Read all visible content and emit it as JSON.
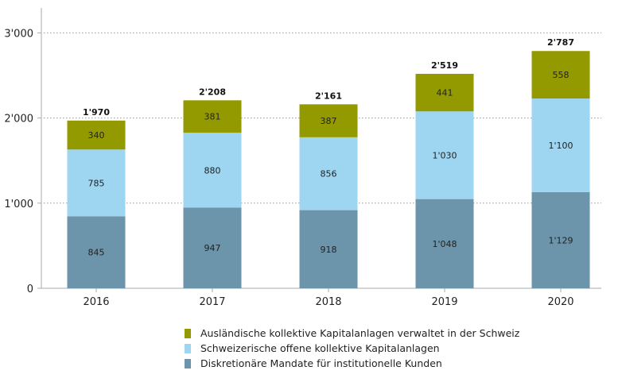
{
  "chart_data": {
    "type": "bar",
    "stacked": true,
    "categories": [
      "2016",
      "2017",
      "2018",
      "2019",
      "2020"
    ],
    "series": [
      {
        "name": "Diskretionäre Mandate für institutionelle Kunden",
        "color": "#6c94aa",
        "values": [
          845,
          947,
          918,
          1048,
          1129
        ],
        "labels": [
          "845",
          "947",
          "918",
          "1'048",
          "1'129"
        ]
      },
      {
        "name": "Schweizerische offene kollektive Kapitalanlagen",
        "color": "#9ed6f2",
        "values": [
          785,
          880,
          856,
          1030,
          1100
        ],
        "labels": [
          "785",
          "880",
          "856",
          "1'030",
          "1'100"
        ]
      },
      {
        "name": "Ausländische kollektive Kapitalanlagen verwaltet in der Schweiz",
        "color": "#939a00",
        "values": [
          340,
          381,
          387,
          441,
          558
        ],
        "labels": [
          "340",
          "381",
          "387",
          "441",
          "558"
        ]
      }
    ],
    "totals": [
      1970,
      2208,
      2161,
      2519,
      2787
    ],
    "total_labels": [
      "1'970",
      "2'208",
      "2'161",
      "2'519",
      "2'787"
    ],
    "ylim": [
      0,
      3300
    ],
    "yticks": [
      0,
      1000,
      2000,
      3000
    ],
    "ytick_labels": [
      "0",
      "1'000",
      "2'000",
      "3'000"
    ],
    "grid": "horizontal dotted",
    "legend_position": "bottom",
    "title": "",
    "xlabel": "",
    "ylabel": ""
  }
}
